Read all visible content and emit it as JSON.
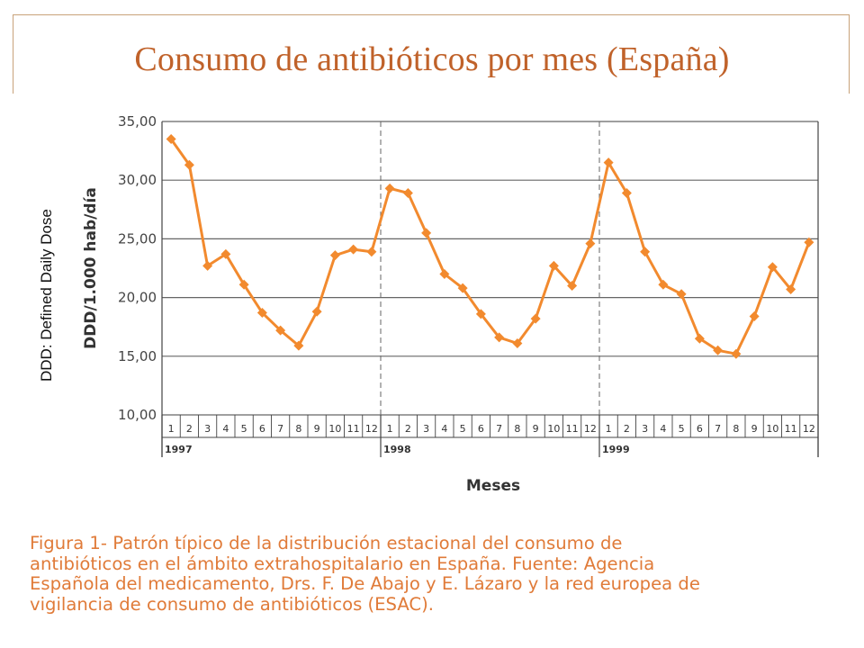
{
  "title": "Consumo de antibióticos por mes (España)",
  "side_note": "DDD: Defined Daily Dose",
  "caption_lines": [
    "Figura 1- Patrón típico de la distribución estacional del consumo de",
    "antibióticos en el ámbito extrahospitalario en España. Fuente: Agencia",
    "Española del medicamento, Drs. F. De Abajo y E. Lázaro y la red europea de",
    "vigilancia de consumo de antibióticos (ESAC)."
  ],
  "colors": {
    "line": "#f28a2e",
    "title": "#c0622a",
    "caption": "#e07b39",
    "grid": "#555555"
  },
  "chart_data": {
    "type": "line",
    "ylabel": "DDD/1.000 hab/día",
    "xlabel": "Meses",
    "ylim": [
      10,
      35
    ],
    "yticks": [
      "10,00",
      "15,00",
      "20,00",
      "25,00",
      "30,00",
      "35,00"
    ],
    "grid": "horizontal",
    "years": [
      "1997",
      "1998",
      "1999"
    ],
    "months": [
      "1",
      "2",
      "3",
      "4",
      "5",
      "6",
      "7",
      "8",
      "9",
      "10",
      "11",
      "12"
    ],
    "values": [
      33.5,
      31.3,
      22.7,
      23.7,
      21.1,
      18.7,
      17.2,
      15.9,
      18.8,
      23.6,
      24.1,
      23.9,
      29.3,
      28.9,
      25.5,
      22.0,
      20.8,
      18.6,
      16.6,
      16.1,
      18.2,
      22.7,
      21.0,
      24.6,
      31.5,
      28.9,
      23.9,
      21.1,
      20.3,
      16.5,
      15.5,
      15.2,
      18.4,
      22.6,
      20.7,
      24.7
    ]
  }
}
